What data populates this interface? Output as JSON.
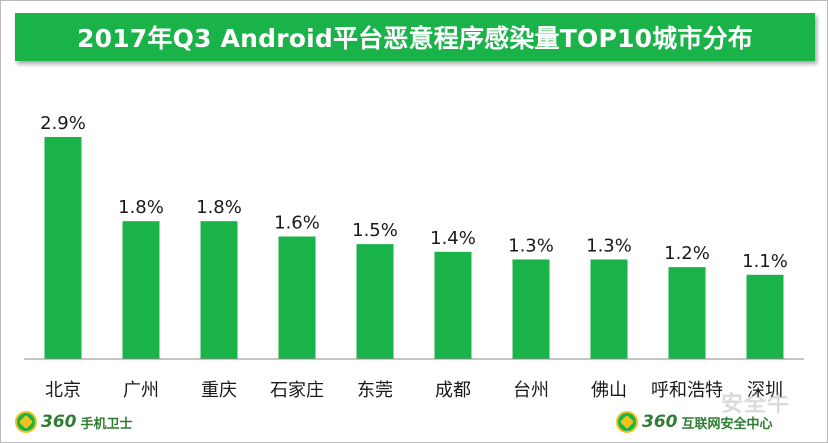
{
  "chart_data": {
    "type": "bar",
    "title": "2017年Q3 Android平台恶意程序感染量TOP10城市分布",
    "categories": [
      "北京",
      "广州",
      "重庆",
      "石家庄",
      "东莞",
      "成都",
      "台州",
      "佛山",
      "呼和浩特",
      "深圳"
    ],
    "values": [
      2.9,
      1.8,
      1.8,
      1.6,
      1.5,
      1.4,
      1.3,
      1.3,
      1.2,
      1.1
    ],
    "value_labels": [
      "2.9%",
      "1.8%",
      "1.8%",
      "1.6%",
      "1.5%",
      "1.4%",
      "1.3%",
      "1.3%",
      "1.2%",
      "1.1%"
    ],
    "unit": "%",
    "ylim": [
      0,
      3.2
    ],
    "xlabel": "",
    "ylabel": "",
    "grid": false,
    "bar_color": "#19b34a"
  },
  "branding": {
    "left_logo_number": "360",
    "left_logo_text": "手机卫士",
    "right_logo_number": "360",
    "right_logo_text": "互联网安全中心",
    "watermark": "安全牛"
  },
  "colors": {
    "title_bg": "#19b34a",
    "axis": "#888888",
    "text": "#1a1a1a",
    "logo_green": "#2e7d32",
    "logo_gold": "#f3c11b"
  }
}
